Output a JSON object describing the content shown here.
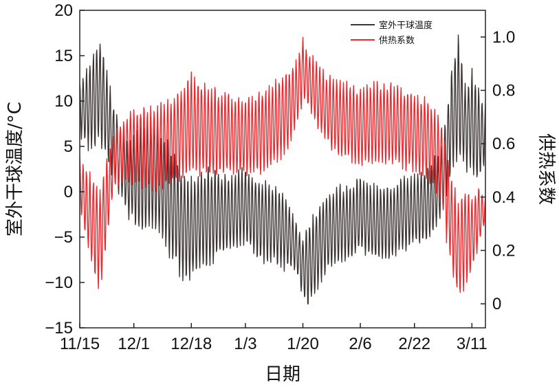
{
  "chart_data": {
    "type": "line",
    "title": "",
    "xlabel": "日期",
    "ylabel_left": "室外干球温度/°C",
    "ylabel_right": "供热系数",
    "x_tick_labels": [
      "11/15",
      "12/1",
      "12/18",
      "1/3",
      "1/20",
      "2/6",
      "2/22",
      "3/11"
    ],
    "x_tick_days": [
      0,
      16,
      33,
      49,
      66,
      83,
      99,
      116
    ],
    "x_range_days": [
      0,
      120
    ],
    "ylim_left": [
      -15,
      20
    ],
    "yticks_left": [
      -15,
      -10,
      -5,
      0,
      5,
      10,
      15,
      20
    ],
    "ylim_right": [
      -0.09,
      1.1
    ],
    "yticks_right": [
      0,
      0.2,
      0.4,
      0.6,
      0.8,
      1.0
    ],
    "ytick_labels_right": [
      "0",
      "0.2",
      "0.4",
      "0.6",
      "0.8",
      "1.0"
    ],
    "legend_position": "top-right",
    "series": [
      {
        "name": "室外干球温度",
        "axis": "left",
        "color": "#3b3433",
        "envelope": {
          "day": [
            0,
            3,
            6,
            10,
            14,
            18,
            22,
            26,
            30,
            33,
            36,
            40,
            44,
            49,
            53,
            57,
            61,
            64,
            66,
            68,
            72,
            76,
            80,
            83,
            87,
            91,
            95,
            99,
            103,
            107,
            110,
            112,
            114,
            116,
            118,
            120
          ],
          "high": [
            12,
            15,
            17.5,
            10,
            6,
            8,
            9,
            6,
            3,
            2,
            3,
            3,
            2,
            3,
            2,
            1,
            0,
            -3,
            -5,
            -3,
            0,
            1,
            1,
            2,
            1,
            1,
            2,
            2,
            3,
            5,
            14,
            18,
            12,
            14,
            12,
            10
          ],
          "low": [
            6,
            4,
            5,
            1,
            -3,
            -5,
            -5,
            -7,
            -10,
            -10,
            -9,
            -8,
            -7,
            -6,
            -8,
            -8,
            -9,
            -9,
            -12,
            -13,
            -10,
            -8,
            -8,
            -7,
            -8,
            -8,
            -7,
            -6,
            -6,
            -3,
            2,
            3,
            2,
            2,
            0,
            3
          ]
        }
      },
      {
        "name": "供热系数",
        "axis": "right",
        "color": "#e8292e",
        "envelope": {
          "day": [
            0,
            3,
            6,
            10,
            14,
            18,
            22,
            26,
            30,
            33,
            36,
            40,
            44,
            49,
            53,
            57,
            61,
            64,
            66,
            68,
            72,
            76,
            80,
            83,
            87,
            91,
            95,
            99,
            103,
            107,
            110,
            112,
            114,
            116,
            118,
            120
          ],
          "high": [
            0.55,
            0.5,
            0.45,
            0.65,
            0.72,
            0.75,
            0.75,
            0.78,
            0.82,
            0.88,
            0.85,
            0.82,
            0.8,
            0.78,
            0.8,
            0.84,
            0.88,
            0.92,
            1.0,
            0.95,
            0.88,
            0.85,
            0.84,
            0.82,
            0.84,
            0.84,
            0.82,
            0.8,
            0.78,
            0.7,
            0.5,
            0.4,
            0.45,
            0.42,
            0.45,
            0.4
          ],
          "low": [
            0.35,
            0.15,
            0.02,
            0.42,
            0.45,
            0.42,
            0.4,
            0.42,
            0.45,
            0.48,
            0.46,
            0.46,
            0.48,
            0.46,
            0.48,
            0.5,
            0.55,
            0.65,
            0.75,
            0.72,
            0.6,
            0.55,
            0.52,
            0.5,
            0.52,
            0.52,
            0.5,
            0.48,
            0.45,
            0.35,
            0.1,
            0.0,
            0.05,
            0.1,
            0.2,
            0.3
          ]
        }
      }
    ]
  }
}
